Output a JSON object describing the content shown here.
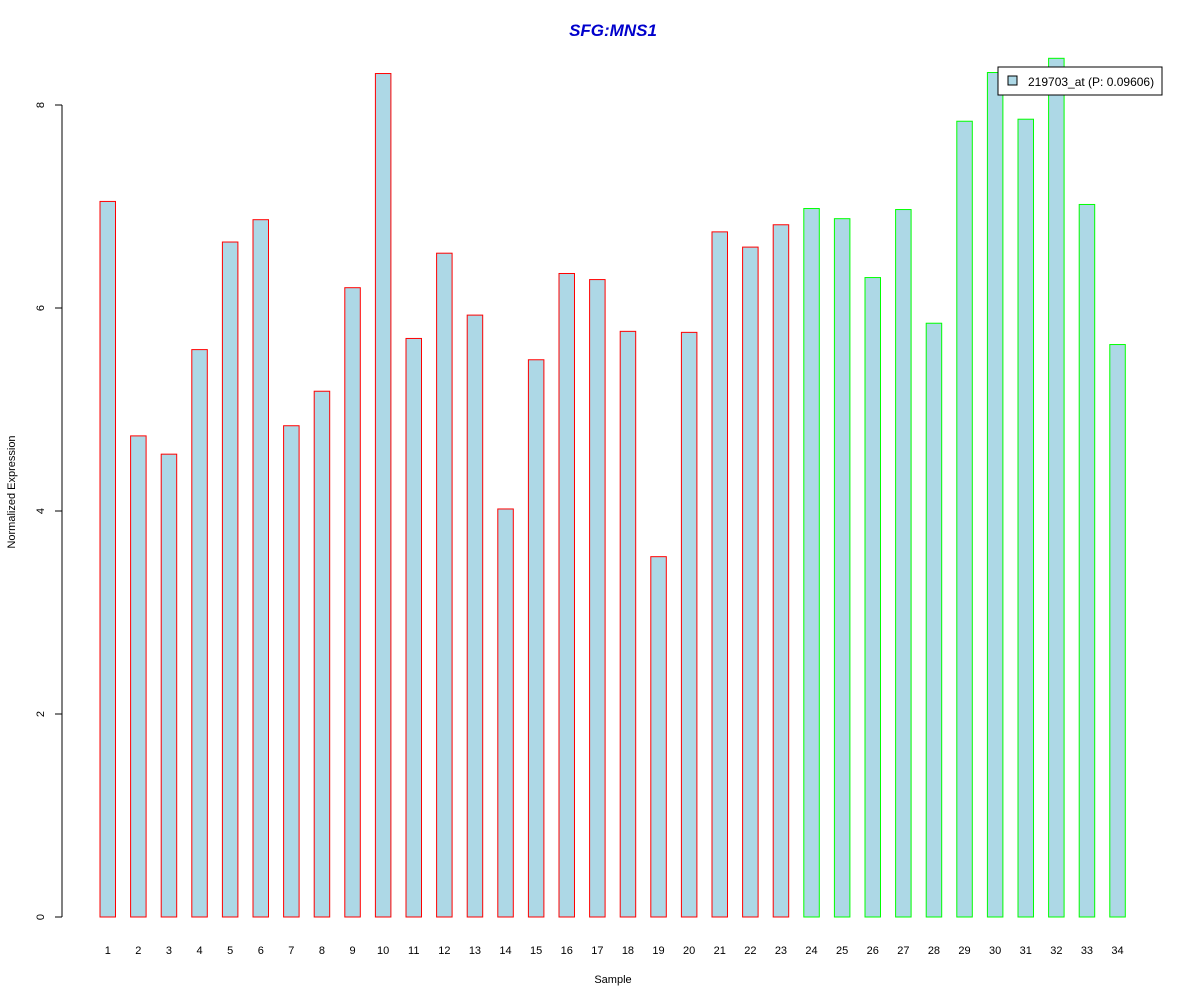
{
  "chart_data": {
    "type": "bar",
    "title": "SFG:MNS1",
    "xlabel": "Sample",
    "ylabel": "Normalized Expression",
    "ylim": [
      0,
      8.6
    ],
    "yticks": [
      "0",
      "2",
      "4",
      "6",
      "8"
    ],
    "categories": [
      "1",
      "2",
      "3",
      "4",
      "5",
      "6",
      "7",
      "8",
      "9",
      "10",
      "11",
      "12",
      "13",
      "14",
      "15",
      "16",
      "17",
      "18",
      "19",
      "20",
      "21",
      "22",
      "23",
      "24",
      "25",
      "26",
      "27",
      "28",
      "29",
      "30",
      "31",
      "32",
      "33",
      "34"
    ],
    "series": [
      {
        "name": "219703_at (P: 0.09606)",
        "values": [
          7.05,
          4.74,
          4.56,
          5.59,
          6.65,
          6.87,
          4.84,
          5.18,
          6.2,
          8.31,
          5.7,
          6.54,
          5.93,
          4.02,
          5.49,
          6.34,
          6.28,
          5.77,
          3.55,
          5.76,
          6.75,
          6.6,
          6.82,
          6.98,
          6.88,
          6.3,
          6.97,
          5.85,
          7.84,
          8.32,
          7.86,
          8.46,
          7.02,
          5.64
        ]
      }
    ],
    "bar_fill": "#add8e6",
    "border_colors": [
      "#ff0000",
      "#ff0000",
      "#ff0000",
      "#ff0000",
      "#ff0000",
      "#ff0000",
      "#ff0000",
      "#ff0000",
      "#ff0000",
      "#ff0000",
      "#ff0000",
      "#ff0000",
      "#ff0000",
      "#ff0000",
      "#ff0000",
      "#ff0000",
      "#ff0000",
      "#ff0000",
      "#ff0000",
      "#ff0000",
      "#ff0000",
      "#ff0000",
      "#ff0000",
      "#00ff00",
      "#00ff00",
      "#00ff00",
      "#00ff00",
      "#00ff00",
      "#00ff00",
      "#00ff00",
      "#00ff00",
      "#00ff00",
      "#00ff00",
      "#00ff00"
    ],
    "title_color": "#0000cc",
    "legend_placement": "top-right",
    "grid": false
  }
}
